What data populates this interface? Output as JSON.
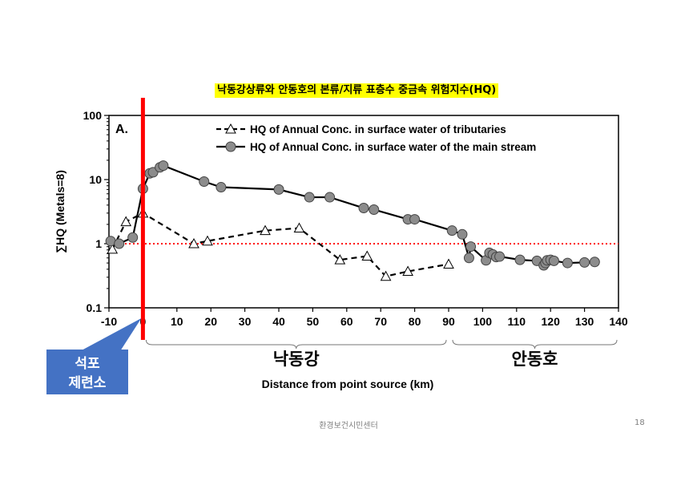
{
  "slide": {
    "footer": "환경보건시민센터",
    "page_number": "18"
  },
  "chart_data": {
    "type": "line",
    "title": "낙동강상류와 안동호의 본류/지류 표층수 중금속 위험지수(HQ)",
    "panel_label": "A.",
    "xlabel": "Distance from point source (km)",
    "ylabel": "∑HQ (Metals=8)",
    "y_scale": "log",
    "xlim": [
      -10,
      140
    ],
    "ylim": [
      0.1,
      100
    ],
    "x_ticks": [
      -10,
      0,
      10,
      20,
      30,
      40,
      50,
      60,
      70,
      80,
      90,
      100,
      110,
      120,
      130,
      140
    ],
    "y_ticks": [
      {
        "value": 0.1,
        "label": "0.1"
      },
      {
        "value": 1,
        "label": "1"
      },
      {
        "value": 10,
        "label": "10"
      },
      {
        "value": 100,
        "label": "100"
      }
    ],
    "legend_position": "top-right",
    "reference_line": {
      "y": 1,
      "color": "#ff0000"
    },
    "source_marker": {
      "x": 0,
      "color": "#ff0000"
    },
    "colors": {
      "main_marker": "#8c8c8c",
      "line": "#000000"
    },
    "series": [
      {
        "name": "HQ of Annual Conc. in surface water of tributaries",
        "style": "dashed-triangle",
        "points": [
          [
            -9,
            0.82
          ],
          [
            -5,
            2.2
          ],
          [
            0,
            3.0
          ],
          [
            15,
            1.0
          ],
          [
            19,
            1.1
          ],
          [
            36,
            1.6
          ],
          [
            46,
            1.75
          ],
          [
            58,
            0.56
          ],
          [
            66,
            0.64
          ],
          [
            71.5,
            0.31
          ],
          [
            78,
            0.37
          ],
          [
            90,
            0.48
          ]
        ]
      },
      {
        "name": "HQ of Annual Conc. in surface water of the main stream",
        "style": "solid-circle",
        "points": [
          [
            -9.5,
            1.1
          ],
          [
            -7,
            1.0
          ],
          [
            -3,
            1.25
          ],
          [
            0,
            7.2
          ],
          [
            2,
            12.5
          ],
          [
            3,
            13
          ],
          [
            5,
            15.5
          ],
          [
            6,
            16.5
          ],
          [
            18,
            9.3
          ],
          [
            23,
            7.6
          ],
          [
            40,
            7.0
          ],
          [
            49,
            5.3
          ],
          [
            55,
            5.3
          ],
          [
            65,
            3.6
          ],
          [
            68,
            3.4
          ],
          [
            78,
            2.4
          ],
          [
            80,
            2.4
          ],
          [
            91,
            1.6
          ],
          [
            94,
            1.4
          ],
          [
            96,
            0.6
          ],
          [
            96.5,
            0.9
          ],
          [
            101,
            0.55
          ],
          [
            102,
            0.72
          ],
          [
            103,
            0.68
          ],
          [
            104,
            0.62
          ],
          [
            105,
            0.63
          ],
          [
            111,
            0.56
          ],
          [
            116,
            0.54
          ],
          [
            118,
            0.46
          ],
          [
            118.5,
            0.5
          ],
          [
            119,
            0.55
          ],
          [
            120,
            0.56
          ],
          [
            121,
            0.54
          ],
          [
            125,
            0.5
          ],
          [
            130,
            0.51
          ],
          [
            133,
            0.52
          ]
        ]
      }
    ],
    "region_labels": [
      {
        "text": "낙동강",
        "x_range": [
          -10,
          90
        ]
      },
      {
        "text": "안동호",
        "x_range": [
          90,
          140
        ]
      }
    ],
    "source_callout": "석포 제련소"
  }
}
